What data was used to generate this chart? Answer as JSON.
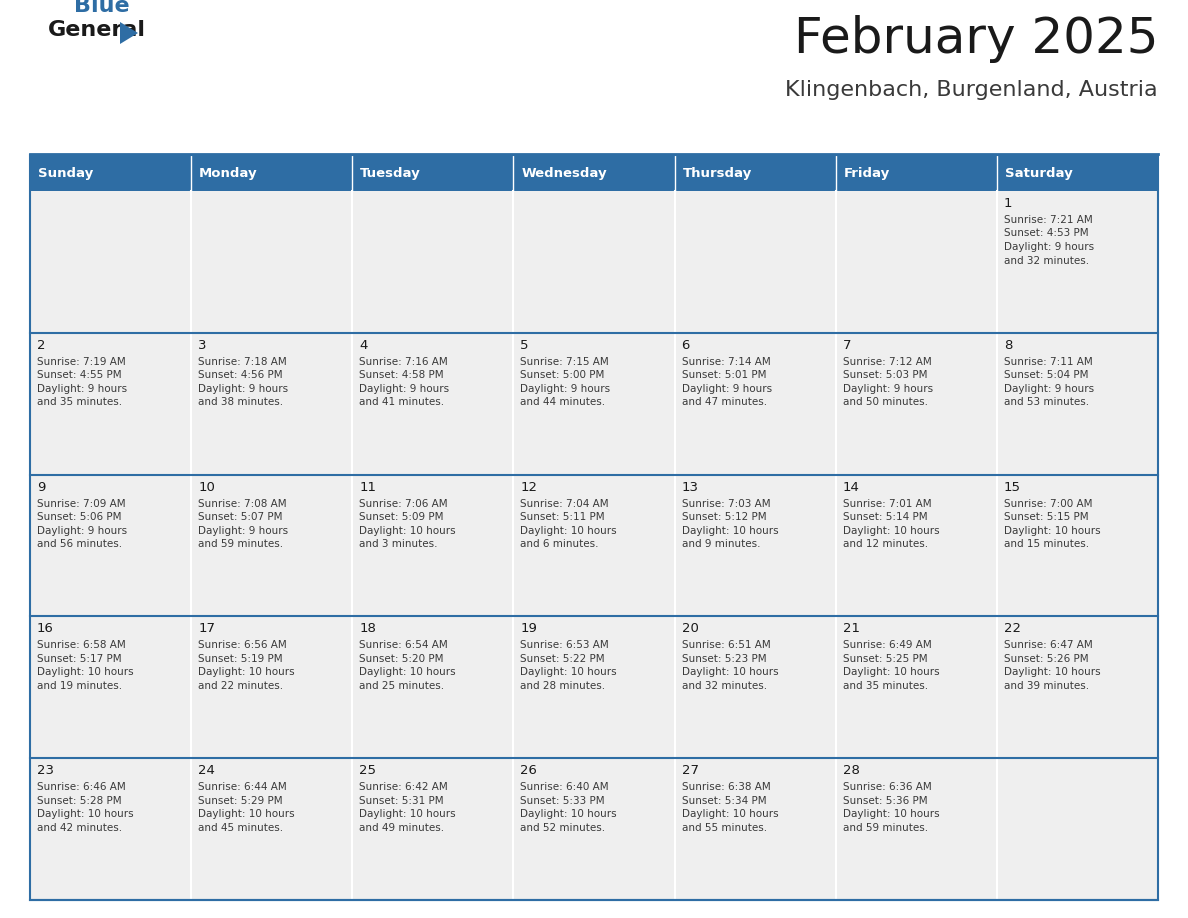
{
  "title": "February 2025",
  "subtitle": "Klingenbach, Burgenland, Austria",
  "days_of_week": [
    "Sunday",
    "Monday",
    "Tuesday",
    "Wednesday",
    "Thursday",
    "Friday",
    "Saturday"
  ],
  "header_bg": "#2E6DA4",
  "header_fg": "#FFFFFF",
  "cell_bg": "#EFEFEF",
  "border_color": "#2E6DA4",
  "row_sep_color": "#2E6DA4",
  "title_color": "#1a1a1a",
  "subtitle_color": "#3a3a3a",
  "cell_text_color": "#3a3a3a",
  "day_number_color": "#1a1a1a",
  "logo_general_color": "#1a1a1a",
  "logo_blue_color": "#2E6DA4",
  "weeks": [
    [
      null,
      null,
      null,
      null,
      null,
      null,
      {
        "day": 1,
        "lines": [
          "Sunrise: 7:21 AM",
          "Sunset: 4:53 PM",
          "Daylight: 9 hours",
          "and 32 minutes."
        ]
      }
    ],
    [
      {
        "day": 2,
        "lines": [
          "Sunrise: 7:19 AM",
          "Sunset: 4:55 PM",
          "Daylight: 9 hours",
          "and 35 minutes."
        ]
      },
      {
        "day": 3,
        "lines": [
          "Sunrise: 7:18 AM",
          "Sunset: 4:56 PM",
          "Daylight: 9 hours",
          "and 38 minutes."
        ]
      },
      {
        "day": 4,
        "lines": [
          "Sunrise: 7:16 AM",
          "Sunset: 4:58 PM",
          "Daylight: 9 hours",
          "and 41 minutes."
        ]
      },
      {
        "day": 5,
        "lines": [
          "Sunrise: 7:15 AM",
          "Sunset: 5:00 PM",
          "Daylight: 9 hours",
          "and 44 minutes."
        ]
      },
      {
        "day": 6,
        "lines": [
          "Sunrise: 7:14 AM",
          "Sunset: 5:01 PM",
          "Daylight: 9 hours",
          "and 47 minutes."
        ]
      },
      {
        "day": 7,
        "lines": [
          "Sunrise: 7:12 AM",
          "Sunset: 5:03 PM",
          "Daylight: 9 hours",
          "and 50 minutes."
        ]
      },
      {
        "day": 8,
        "lines": [
          "Sunrise: 7:11 AM",
          "Sunset: 5:04 PM",
          "Daylight: 9 hours",
          "and 53 minutes."
        ]
      }
    ],
    [
      {
        "day": 9,
        "lines": [
          "Sunrise: 7:09 AM",
          "Sunset: 5:06 PM",
          "Daylight: 9 hours",
          "and 56 minutes."
        ]
      },
      {
        "day": 10,
        "lines": [
          "Sunrise: 7:08 AM",
          "Sunset: 5:07 PM",
          "Daylight: 9 hours",
          "and 59 minutes."
        ]
      },
      {
        "day": 11,
        "lines": [
          "Sunrise: 7:06 AM",
          "Sunset: 5:09 PM",
          "Daylight: 10 hours",
          "and 3 minutes."
        ]
      },
      {
        "day": 12,
        "lines": [
          "Sunrise: 7:04 AM",
          "Sunset: 5:11 PM",
          "Daylight: 10 hours",
          "and 6 minutes."
        ]
      },
      {
        "day": 13,
        "lines": [
          "Sunrise: 7:03 AM",
          "Sunset: 5:12 PM",
          "Daylight: 10 hours",
          "and 9 minutes."
        ]
      },
      {
        "day": 14,
        "lines": [
          "Sunrise: 7:01 AM",
          "Sunset: 5:14 PM",
          "Daylight: 10 hours",
          "and 12 minutes."
        ]
      },
      {
        "day": 15,
        "lines": [
          "Sunrise: 7:00 AM",
          "Sunset: 5:15 PM",
          "Daylight: 10 hours",
          "and 15 minutes."
        ]
      }
    ],
    [
      {
        "day": 16,
        "lines": [
          "Sunrise: 6:58 AM",
          "Sunset: 5:17 PM",
          "Daylight: 10 hours",
          "and 19 minutes."
        ]
      },
      {
        "day": 17,
        "lines": [
          "Sunrise: 6:56 AM",
          "Sunset: 5:19 PM",
          "Daylight: 10 hours",
          "and 22 minutes."
        ]
      },
      {
        "day": 18,
        "lines": [
          "Sunrise: 6:54 AM",
          "Sunset: 5:20 PM",
          "Daylight: 10 hours",
          "and 25 minutes."
        ]
      },
      {
        "day": 19,
        "lines": [
          "Sunrise: 6:53 AM",
          "Sunset: 5:22 PM",
          "Daylight: 10 hours",
          "and 28 minutes."
        ]
      },
      {
        "day": 20,
        "lines": [
          "Sunrise: 6:51 AM",
          "Sunset: 5:23 PM",
          "Daylight: 10 hours",
          "and 32 minutes."
        ]
      },
      {
        "day": 21,
        "lines": [
          "Sunrise: 6:49 AM",
          "Sunset: 5:25 PM",
          "Daylight: 10 hours",
          "and 35 minutes."
        ]
      },
      {
        "day": 22,
        "lines": [
          "Sunrise: 6:47 AM",
          "Sunset: 5:26 PM",
          "Daylight: 10 hours",
          "and 39 minutes."
        ]
      }
    ],
    [
      {
        "day": 23,
        "lines": [
          "Sunrise: 6:46 AM",
          "Sunset: 5:28 PM",
          "Daylight: 10 hours",
          "and 42 minutes."
        ]
      },
      {
        "day": 24,
        "lines": [
          "Sunrise: 6:44 AM",
          "Sunset: 5:29 PM",
          "Daylight: 10 hours",
          "and 45 minutes."
        ]
      },
      {
        "day": 25,
        "lines": [
          "Sunrise: 6:42 AM",
          "Sunset: 5:31 PM",
          "Daylight: 10 hours",
          "and 49 minutes."
        ]
      },
      {
        "day": 26,
        "lines": [
          "Sunrise: 6:40 AM",
          "Sunset: 5:33 PM",
          "Daylight: 10 hours",
          "and 52 minutes."
        ]
      },
      {
        "day": 27,
        "lines": [
          "Sunrise: 6:38 AM",
          "Sunset: 5:34 PM",
          "Daylight: 10 hours",
          "and 55 minutes."
        ]
      },
      {
        "day": 28,
        "lines": [
          "Sunrise: 6:36 AM",
          "Sunset: 5:36 PM",
          "Daylight: 10 hours",
          "and 59 minutes."
        ]
      },
      null
    ]
  ]
}
